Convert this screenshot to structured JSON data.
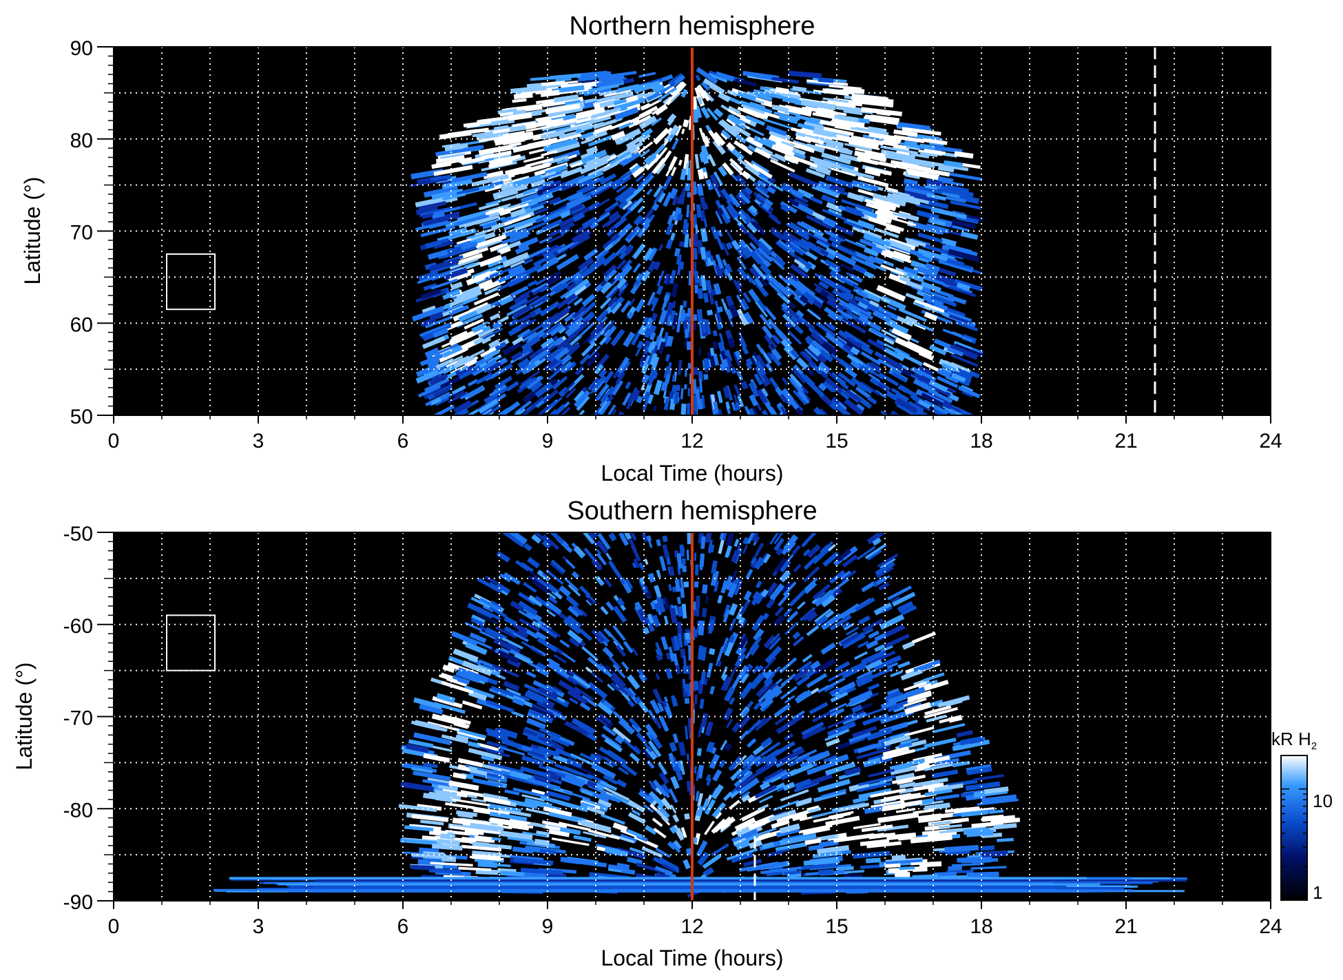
{
  "chart_data": [
    {
      "type": "heatmap",
      "title": "Northern hemisphere",
      "xlabel": "Local Time (hours)",
      "ylabel": "Latitude (°)",
      "xlim": [
        0,
        24
      ],
      "ylim": [
        50,
        90
      ],
      "xticks": [
        "0",
        "3",
        "6",
        "9",
        "12",
        "15",
        "18",
        "21",
        "24"
      ],
      "yticks": [
        "50",
        "60",
        "70",
        "80",
        "90"
      ],
      "grid": true,
      "grid_x_hours": [
        1,
        2,
        3,
        4,
        5,
        6,
        7,
        8,
        9,
        10,
        11,
        12,
        13,
        14,
        15,
        16,
        17,
        18,
        19,
        20,
        21,
        22,
        23
      ],
      "grid_y_deg": [
        55,
        60,
        65,
        70,
        75,
        80,
        85
      ],
      "coverage": {
        "lt_start": 6.5,
        "lt_end": 18,
        "lat_max": 88
      },
      "aurora_oval": {
        "center_lt": 12,
        "outer_half_width_hours": 5.5,
        "outer_lat_top": 85,
        "pole_lat": 90
      },
      "noon_line_lt": 12,
      "dashed_line_lt": 21.6,
      "box": {
        "lt": [
          1.1,
          2.1
        ],
        "lat": [
          61.5,
          67.5
        ]
      }
    },
    {
      "type": "heatmap",
      "title": "Southern hemisphere",
      "xlabel": "Local Time (hours)",
      "ylabel": "Latitude (°)",
      "xlim": [
        0,
        24
      ],
      "ylim": [
        -90,
        -50
      ],
      "xticks": [
        "0",
        "3",
        "6",
        "9",
        "12",
        "15",
        "18",
        "21",
        "24"
      ],
      "yticks": [
        "-90",
        "-80",
        "-70",
        "-60",
        "-50"
      ],
      "grid": true,
      "grid_x_hours": [
        1,
        2,
        3,
        4,
        5,
        6,
        7,
        8,
        9,
        10,
        11,
        12,
        13,
        14,
        15,
        16,
        17,
        18,
        19,
        20,
        21,
        22,
        23
      ],
      "grid_y_deg": [
        -85,
        -80,
        -75,
        -70,
        -65,
        -60,
        -55
      ],
      "coverage": {
        "lt_start": 6.3,
        "lt_end": 18.5,
        "lat_min": -89
      },
      "aurora_oval": {
        "center_lt": 12,
        "outer_half_width_hours": 5.5,
        "bright_band_lat": [
          -78,
          -85
        ]
      },
      "noon_line_lt": 12,
      "dashed_line_lt": 13.3,
      "box": {
        "lt": [
          1.1,
          2.1
        ],
        "lat": [
          -65,
          -59
        ]
      }
    }
  ],
  "colorbar": {
    "label": "kR H",
    "subscript": "2",
    "scale": "log",
    "range": [
      1,
      20
    ],
    "ticks": [
      "10",
      "1"
    ],
    "colors": [
      "#000000",
      "#00116b",
      "#0b4fcf",
      "#3a9cff",
      "#ffffff"
    ]
  },
  "colors": {
    "background": "#000000",
    "noon_line": "#d23a10",
    "grid": "#ffffff",
    "emission": "#3a8cff"
  }
}
